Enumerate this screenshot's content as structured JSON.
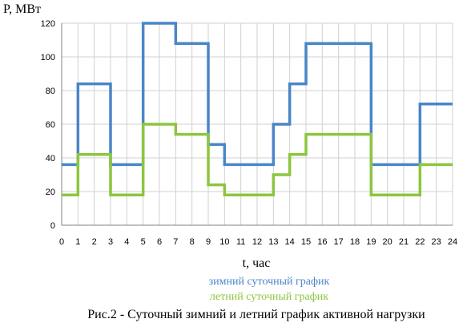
{
  "chart_data": {
    "type": "line",
    "step": true,
    "ylabel": "P, МВт",
    "xlabel": "t, час",
    "xlim": [
      0,
      24
    ],
    "ylim": [
      0,
      120
    ],
    "xticks": [
      0,
      1,
      2,
      3,
      4,
      5,
      6,
      7,
      8,
      9,
      10,
      11,
      12,
      13,
      14,
      15,
      16,
      17,
      18,
      19,
      20,
      21,
      22,
      23,
      24
    ],
    "yticks": [
      0,
      20,
      40,
      60,
      80,
      100,
      120
    ],
    "grid": true,
    "series": [
      {
        "name": "зимний суточный график",
        "color": "#4a86c8",
        "x": [
          0,
          1,
          2,
          3,
          4,
          5,
          6,
          7,
          8,
          9,
          10,
          11,
          12,
          13,
          14,
          15,
          16,
          17,
          18,
          19,
          20,
          21,
          22,
          23,
          24
        ],
        "values": [
          36,
          84,
          84,
          36,
          36,
          120,
          120,
          108,
          108,
          48,
          36,
          36,
          36,
          60,
          84,
          108,
          108,
          108,
          108,
          36,
          36,
          36,
          72,
          72,
          72
        ]
      },
      {
        "name": "летний суточный график",
        "color": "#8cc63e",
        "x": [
          0,
          1,
          2,
          3,
          4,
          5,
          6,
          7,
          8,
          9,
          10,
          11,
          12,
          13,
          14,
          15,
          16,
          17,
          18,
          19,
          20,
          21,
          22,
          23,
          24
        ],
        "values": [
          18,
          42,
          42,
          18,
          18,
          60,
          60,
          54,
          54,
          24,
          18,
          18,
          18,
          30,
          42,
          54,
          54,
          54,
          54,
          18,
          18,
          18,
          36,
          36,
          36
        ]
      }
    ],
    "legend_position": "bottom-center",
    "caption": "Рис.2 - Суточный зимний и летний график активной нагрузки"
  }
}
